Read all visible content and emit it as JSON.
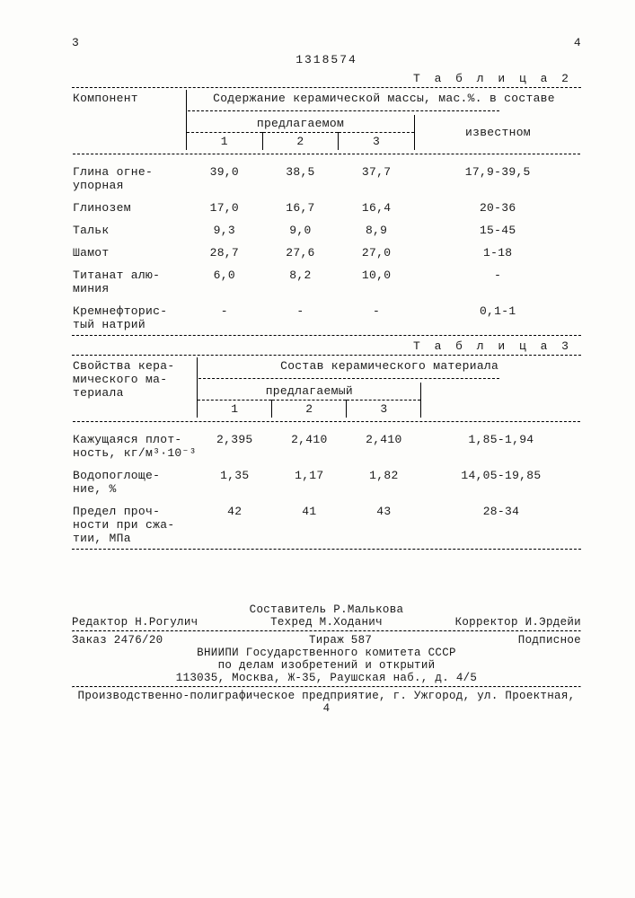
{
  "header": {
    "left_num": "3",
    "right_num": "4",
    "doc_number": "1318574"
  },
  "table2": {
    "caption": "Т а б л и ц а  2",
    "col_component": "Компонент",
    "col_content": "Содержание керамической массы, мас.%. в составе",
    "sub_proposed": "предлагаемом",
    "sub_known": "известном",
    "cols123": [
      "1",
      "2",
      "3"
    ],
    "rows": [
      {
        "label": "Глина огне-\nупорная",
        "v": [
          "39,0",
          "38,5",
          "37,7",
          "17,9-39,5"
        ]
      },
      {
        "label": "Глинозем",
        "v": [
          "17,0",
          "16,7",
          "16,4",
          "20-36"
        ]
      },
      {
        "label": "Тальк",
        "v": [
          "9,3",
          "9,0",
          "8,9",
          "15-45"
        ]
      },
      {
        "label": "Шамот",
        "v": [
          "28,7",
          "27,6",
          "27,0",
          "1-18"
        ]
      },
      {
        "label": "Титанат алю-\nминия",
        "v": [
          "6,0",
          "8,2",
          "10,0",
          "-"
        ]
      },
      {
        "label": "Кремнефторис-\nтый натрий",
        "v": [
          "-",
          "-",
          "-",
          "0,1-1"
        ]
      }
    ]
  },
  "table3": {
    "caption": "Т а б л и ц а  3",
    "col_props": "Свойства кера-\nмического ма-\nтериала",
    "col_content": "Состав керамического материала",
    "sub_proposed": "предлагаемый",
    "cols123": [
      "1",
      "2",
      "3"
    ],
    "rows": [
      {
        "label": "Кажущаяся плот-\nность, кг/м³·10⁻³",
        "v": [
          "2,395",
          "2,410",
          "2,410",
          "1,85-1,94"
        ]
      },
      {
        "label": "Водопоглоще-\nние, %",
        "v": [
          "1,35",
          "1,17",
          "1,82",
          "14,05-19,85"
        ]
      },
      {
        "label": "Предел проч-\nности при сжа-\nтии, МПа",
        "v": [
          "42",
          "41",
          "43",
          "28-34"
        ]
      }
    ]
  },
  "footer": {
    "compiler": "Составитель Р.Малькова",
    "editor": "Редактор Н.Рогулич",
    "techred": "Техред М.Ходанич",
    "corrector": "Корректор И.Эрдейи",
    "order": "Заказ 2476/20",
    "tirage": "Тираж 587",
    "subscribe": "Подписное",
    "org1": "ВНИИПИ Государственного комитета СССР",
    "org2": "по делам изобретений и открытий",
    "addr1": "113035, Москва, Ж-35, Раушская наб., д. 4/5",
    "addr2": "Производственно-полиграфическое предприятие, г. Ужгород, ул. Проектная, 4"
  }
}
